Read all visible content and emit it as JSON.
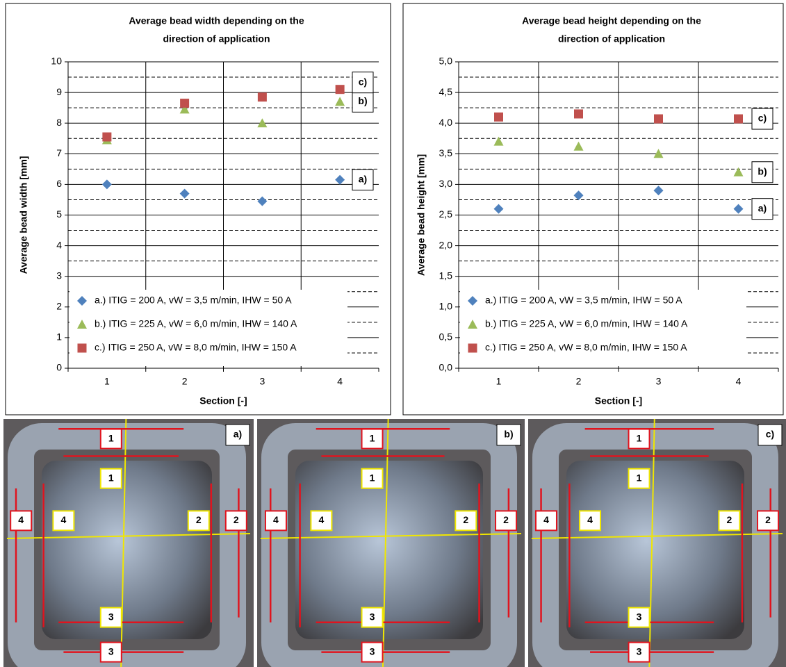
{
  "chart_data": [
    {
      "type": "scatter",
      "title": [
        "Average bead width depending on the",
        "direction of application"
      ],
      "xlabel": "Section  [-]",
      "ylabel": "Average bead width [mm]",
      "categories": [
        "1",
        "2",
        "3",
        "4"
      ],
      "ylim": [
        0,
        10
      ],
      "yticks": [
        0,
        1,
        2,
        3,
        4,
        5,
        6,
        7,
        8,
        9,
        10
      ],
      "minor_yticks": [
        0.5,
        1.5,
        2.5,
        3.5,
        4.5,
        5.5,
        6.5,
        7.5,
        8.5,
        9.5
      ],
      "grid": true,
      "series": [
        {
          "name": "a.) ITIG = 200 A, vW = 3,5 m/min, IHW = 50 A",
          "annotation": "a)",
          "color": "#4f81bd",
          "marker": "diamond",
          "values": [
            6.0,
            5.7,
            5.45,
            6.15
          ]
        },
        {
          "name": "b.) ITIG = 225 A, vW = 6,0 m/min, IHW = 140 A",
          "annotation": "b)",
          "color": "#9bbb59",
          "marker": "triangle",
          "values": [
            7.45,
            8.45,
            8.0,
            8.7
          ]
        },
        {
          "name": "c.) ITIG = 250 A, vW = 8,0 m/min, IHW = 150 A",
          "annotation": "c)",
          "color": "#c0504d",
          "marker": "square",
          "values": [
            7.55,
            8.65,
            8.85,
            9.1
          ]
        }
      ]
    },
    {
      "type": "scatter",
      "title": [
        "Average bead height depending on the",
        "direction of application"
      ],
      "xlabel": "Section  [-]",
      "ylabel": "Average bead height [mm]",
      "categories": [
        "1",
        "2",
        "3",
        "4"
      ],
      "ylim": [
        0,
        5
      ],
      "yticks": [
        {
          "value": 0,
          "label": "0,0"
        },
        {
          "value": 0.5,
          "label": "0,5"
        },
        {
          "value": 1,
          "label": "1,0"
        },
        {
          "value": 1.5,
          "label": "1,5"
        },
        {
          "value": 2,
          "label": "2,0"
        },
        {
          "value": 2.5,
          "label": "2,5"
        },
        {
          "value": 3,
          "label": "3,0"
        },
        {
          "value": 3.5,
          "label": "3,5"
        },
        {
          "value": 4,
          "label": "4,0"
        },
        {
          "value": 4.5,
          "label": "4,5"
        },
        {
          "value": 5,
          "label": "5,0"
        }
      ],
      "minor_yticks": [
        0.25,
        0.75,
        1.25,
        1.75,
        2.25,
        2.75,
        3.25,
        3.75,
        4.25,
        4.75
      ],
      "grid": true,
      "series": [
        {
          "name": "a.) ITIG = 200 A, vW = 3,5 m/min, IHW = 50 A",
          "annotation": "a)",
          "color": "#4f81bd",
          "marker": "diamond",
          "values": [
            2.6,
            2.82,
            2.9,
            2.6
          ]
        },
        {
          "name": "b.) ITIG = 225 A, vW = 6,0 m/min, IHW = 140 A",
          "annotation": "b)",
          "color": "#9bbb59",
          "marker": "triangle",
          "values": [
            3.7,
            3.62,
            3.5,
            3.2
          ]
        },
        {
          "name": "c.) ITIG = 250 A, vW = 8,0 m/min, IHW = 150 A",
          "annotation": "c)",
          "color": "#c0504d",
          "marker": "square",
          "values": [
            4.1,
            4.15,
            4.07,
            4.07
          ]
        }
      ]
    }
  ],
  "photos": [
    {
      "tag": "a)",
      "labels": [
        "1",
        "1",
        "2",
        "2",
        "3",
        "3",
        "4",
        "4"
      ]
    },
    {
      "tag": "b)",
      "labels": [
        "1",
        "1",
        "2",
        "2",
        "3",
        "3",
        "4",
        "4"
      ]
    },
    {
      "tag": "c)",
      "labels": [
        "1",
        "1",
        "2",
        "2",
        "3",
        "3",
        "4",
        "4"
      ]
    }
  ]
}
